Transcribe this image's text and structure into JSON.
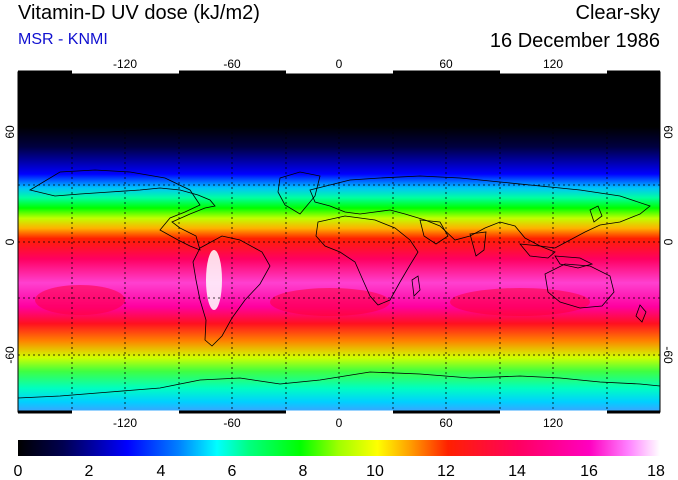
{
  "header": {
    "title": "Vitamin-D UV dose (kJ/m2)",
    "source": "MSR - KNMI",
    "condition": "Clear-sky",
    "date": "16 December 1986"
  },
  "map": {
    "lon_ticks": [
      "-120",
      "-60",
      "0",
      "60",
      "120"
    ],
    "lat_ticks": [
      "60",
      "0",
      "-60"
    ],
    "projection": "equirectangular",
    "gridlines": "dotted",
    "coastlines": true
  },
  "colorbar": {
    "tick_labels": [
      "0",
      "2",
      "4",
      "6",
      "8",
      "10",
      "12",
      "14",
      "16",
      "18"
    ],
    "min": 0,
    "max": 18,
    "colors": [
      "#000000",
      "#000080",
      "#0000ff",
      "#00a0ff",
      "#00ffff",
      "#00ff80",
      "#00ff00",
      "#a0ff00",
      "#ffff00",
      "#ffa000",
      "#ff3000",
      "#ff0040",
      "#ff00a0",
      "#ff70ff",
      "#ffffff"
    ]
  }
}
